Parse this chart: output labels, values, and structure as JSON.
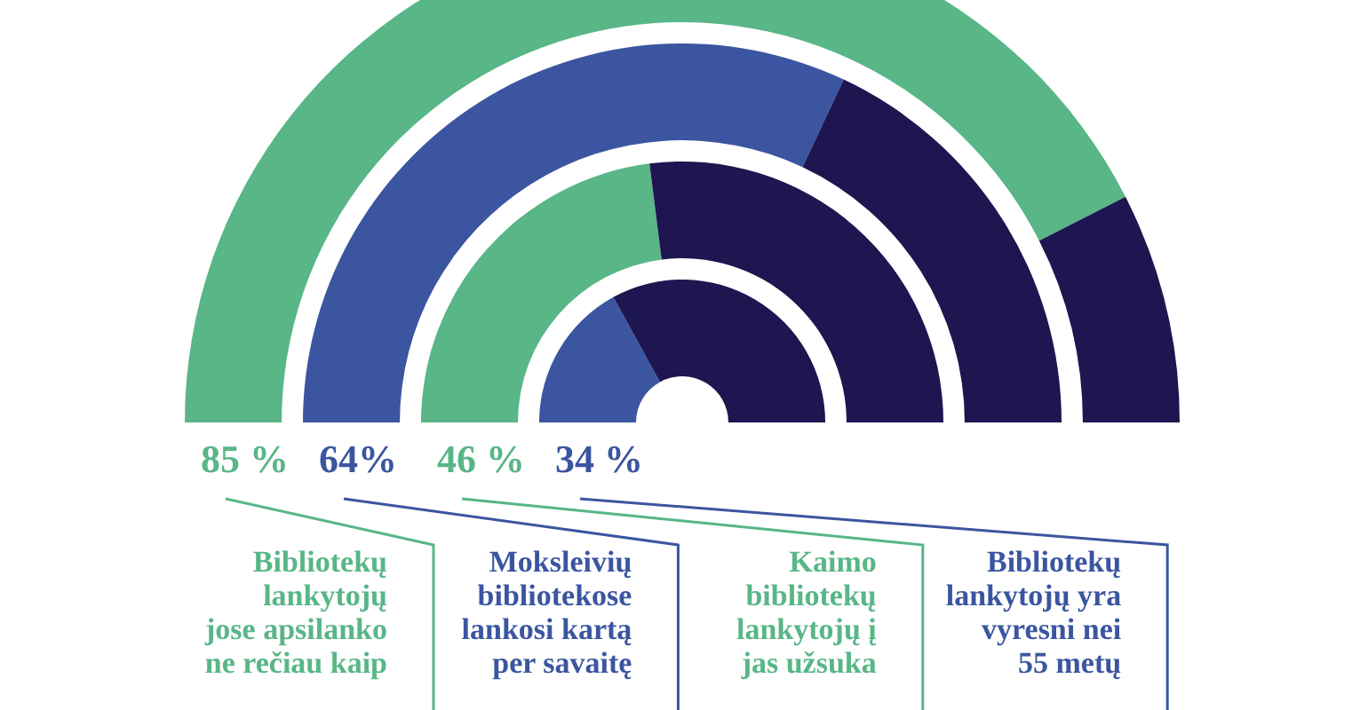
{
  "chart_data": {
    "type": "other",
    "values": [
      85,
      64,
      46,
      34
    ],
    "colors": [
      "#58b687",
      "#3b55a0",
      "#58b687",
      "#3b55a0"
    ],
    "value_labels": [
      "85 %",
      "64%",
      "46 %",
      "34 %"
    ],
    "annotations": [
      "Bibliotekų\nlankytojų\njose apsilanko\nne rečiau kaip",
      "Moksleivių\nbibliotekose\nlankosi kartą\nper savaitę",
      "Kaimo\nbibliotekų\nlankytojų į\njas užsuka",
      "Bibliotekų\nlankytojų yra\nvyresni nei\n55 metų"
    ]
  }
}
